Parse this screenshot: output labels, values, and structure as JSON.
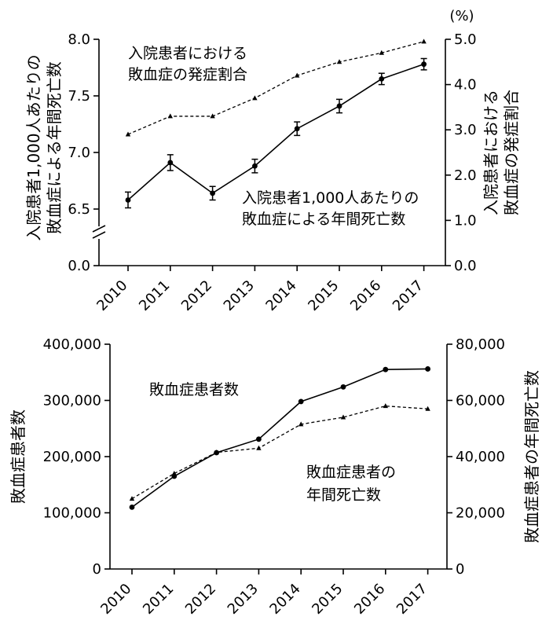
{
  "chart_data": [
    {
      "type": "line",
      "categories": [
        "2010",
        "2011",
        "2012",
        "2013",
        "2014",
        "2015",
        "2016",
        "2017"
      ],
      "left_axis": {
        "label_lines": [
          "入院患者1,000人あたりの",
          "敗血症による年間死亡数"
        ],
        "ylim": [
          0.0,
          8.0
        ],
        "ticks": [
          "0.0",
          "6.5",
          "7.0",
          "7.5",
          "8.0"
        ],
        "axis_break": true
      },
      "right_axis": {
        "label_lines": [
          "入院患者における",
          "敗血症の発症割合"
        ],
        "unit": "(%)",
        "ylim": [
          0.0,
          5.0
        ],
        "ticks": [
          "0.0",
          "1.0",
          "2.0",
          "3.0",
          "4.0",
          "5.0"
        ]
      },
      "series": [
        {
          "name_lines": [
            "入院患者1,000人あたりの",
            "敗血症による年間死亡数"
          ],
          "axis": "left",
          "style": "solid",
          "marker": "circle",
          "values": [
            6.58,
            6.91,
            6.64,
            6.88,
            7.21,
            7.41,
            7.65,
            7.78
          ],
          "error": [
            0.07,
            0.07,
            0.06,
            0.06,
            0.06,
            0.06,
            0.05,
            0.05
          ]
        },
        {
          "name_lines": [
            "入院患者における",
            "敗血症の発症割合"
          ],
          "axis": "right",
          "style": "dashed",
          "marker": "triangle",
          "values": [
            2.9,
            3.3,
            3.3,
            3.7,
            4.2,
            4.5,
            4.7,
            4.95
          ]
        }
      ]
    },
    {
      "type": "line",
      "categories": [
        "2010",
        "2011",
        "2012",
        "2013",
        "2014",
        "2015",
        "2016",
        "2017"
      ],
      "left_axis": {
        "label": "敗血症患者数",
        "ylim": [
          0,
          400000
        ],
        "ticks": [
          "0",
          "100,000",
          "200,000",
          "300,000",
          "400,000"
        ]
      },
      "right_axis": {
        "label": "敗血症患者の年間死亡数",
        "ylim": [
          0,
          80000
        ],
        "ticks": [
          "0",
          "20,000",
          "40,000",
          "60,000",
          "80,000"
        ]
      },
      "series": [
        {
          "name": "敗血症患者数",
          "axis": "left",
          "style": "solid",
          "marker": "circle",
          "values": [
            110000,
            165000,
            207000,
            231000,
            298000,
            324000,
            355000,
            356000
          ]
        },
        {
          "name_lines": [
            "敗血症患者の",
            "年間死亡数"
          ],
          "axis": "right",
          "style": "dashed",
          "marker": "triangle",
          "values": [
            25000,
            34000,
            41500,
            43000,
            51500,
            54000,
            58000,
            57000
          ]
        }
      ]
    }
  ]
}
